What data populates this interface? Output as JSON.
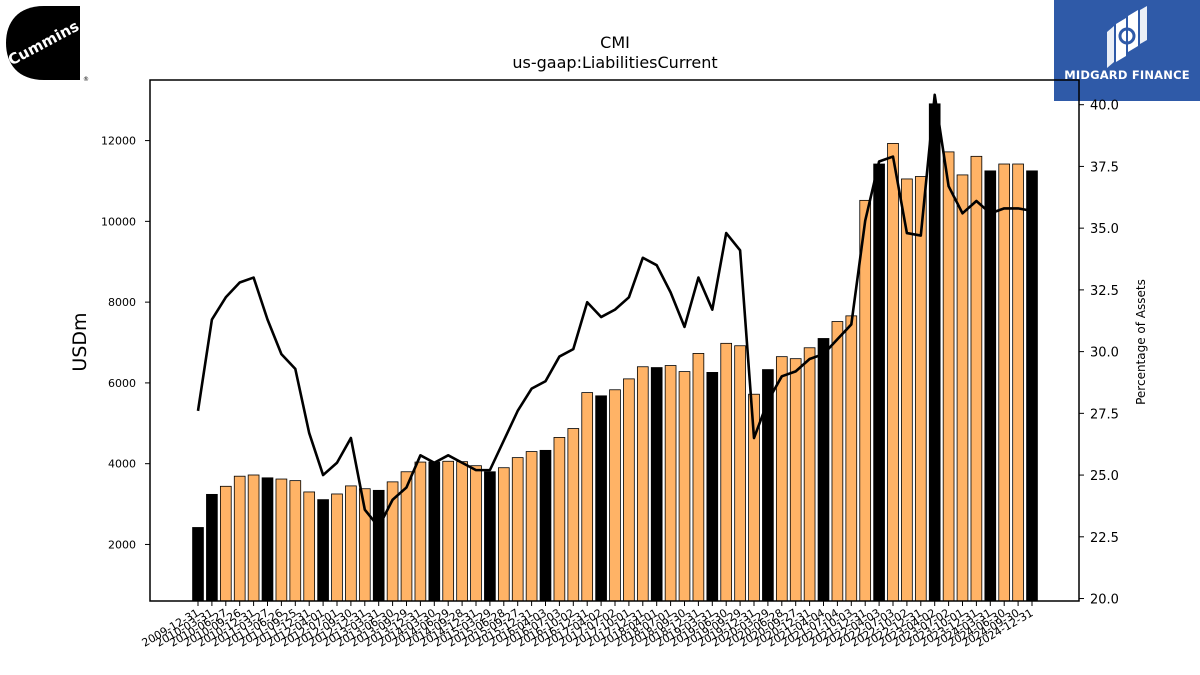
{
  "header": {
    "ticker": "CMI",
    "metric": "us-gaap:LiabilitiesCurrent"
  },
  "logos": {
    "left_text": "Cummins",
    "right_text": "MIDGARD FINANCE"
  },
  "colors": {
    "bar_quarterly": "#ffb366",
    "bar_annual": "#000000",
    "line": "#000000",
    "brand_blue": "#2f5aa8"
  },
  "chart_data": {
    "type": "bar",
    "title": "CMI",
    "subtitle": "us-gaap:LiabilitiesCurrent",
    "ylabel": "USDm",
    "y2label": "Percentage of Assets",
    "ylim": [
      600,
      13500
    ],
    "y2lim": [
      19.9,
      41.0
    ],
    "yticks": [
      2000,
      4000,
      6000,
      8000,
      10000,
      12000
    ],
    "y2ticks": [
      "20.0",
      "22.5",
      "25.0",
      "27.5",
      "30.0",
      "32.5",
      "35.0",
      "37.5",
      "40.0"
    ],
    "categories": [
      "2009-12-31",
      "2010-03-31",
      "2010-06-27",
      "2010-09-26",
      "2010-12-31",
      "2011-03-27",
      "2011-06-26",
      "2011-09-25",
      "2011-12-31",
      "2012-04-01",
      "2012-07-01",
      "2012-09-30",
      "2012-12-31",
      "2013-03-31",
      "2013-06-30",
      "2013-09-29",
      "2013-12-31",
      "2014-03-30",
      "2014-06-29",
      "2014-09-28",
      "2014-12-31",
      "2015-03-29",
      "2015-06-28",
      "2015-09-27",
      "2015-12-31",
      "2016-04-03",
      "2016-07-03",
      "2016-10-02",
      "2016-12-31",
      "2017-04-02",
      "2017-07-02",
      "2017-10-01",
      "2017-12-31",
      "2018-04-01",
      "2018-07-01",
      "2018-09-30",
      "2018-12-31",
      "2019-03-31",
      "2019-06-30",
      "2019-09-29",
      "2019-12-31",
      "2020-03-29",
      "2020-06-28",
      "2020-09-27",
      "2020-12-31",
      "2021-04-04",
      "2021-07-04",
      "2021-10-03",
      "2021-12-31",
      "2022-04-03",
      "2022-07-03",
      "2022-10-02",
      "2022-12-31",
      "2023-04-02",
      "2023-07-02",
      "2023-10-01",
      "2023-12-31",
      "2024-03-31",
      "2024-06-30",
      "2024-09-30",
      "2024-12-31"
    ],
    "x_tick_labels": [
      "2009-12-31",
      "2010-03-31",
      "2010-06-27",
      "2010-09-26",
      "2010-12-31",
      "2011-03-27",
      "2011-06-26",
      "2011-09-25",
      "2011-12-31",
      "2012-04-01",
      "2012-07-01",
      "2012-09-30",
      "2012-12-31",
      "2013-03-31",
      "2013-06-30",
      "2013-09-29",
      "2013-12-31",
      "2014-03-30",
      "2014-06-29",
      "2014-09-28",
      "2014-12-31",
      "2015-03-29",
      "2015-06-28",
      "2015-09-27",
      "2015-12-31",
      "2016-04-03",
      "2016-07-03",
      "2016-10-02",
      "2016-12-31",
      "2017-04-02",
      "2017-07-02",
      "2017-10-01",
      "2017-12-31",
      "2018-04-01",
      "2018-07-01",
      "2018-09-30",
      "2018-12-31",
      "2019-03-31",
      "2019-06-30",
      "2019-09-29",
      "2019-12-31",
      "2020-03-29",
      "2020-06-28",
      "2020-09-27",
      "2020-12-31",
      "2021-04-04",
      "2021-07-04",
      "2021-10-03",
      "2021-12-31",
      "2022-04-03",
      "2022-07-03",
      "2022-10-02",
      "2022-12-31",
      "2023-04-02",
      "2023-07-02",
      "2023-10-01",
      "2023-12-31",
      "2024-03-31",
      "2024-06-30",
      "2024-09-30",
      "2024-12-31"
    ],
    "annual_flags": [
      1,
      1,
      0,
      0,
      0,
      1,
      0,
      0,
      0,
      1,
      0,
      0,
      0,
      1,
      0,
      0,
      0,
      1,
      0,
      0,
      0,
      1,
      0,
      0,
      0,
      1,
      0,
      0,
      0,
      1,
      0,
      0,
      0,
      1,
      0,
      0,
      0,
      1,
      0,
      0,
      0,
      1,
      0,
      0,
      0,
      1,
      0,
      0,
      0,
      1,
      0,
      0,
      0,
      1,
      0,
      0,
      0,
      1,
      0,
      0,
      1
    ],
    "series": [
      {
        "values": [
          2420,
          3240,
          3440,
          3690,
          3720,
          3650,
          3620,
          3580,
          3300,
          3110,
          3250,
          3450,
          3380,
          3340,
          3550,
          3800,
          4040,
          4040,
          4060,
          4050,
          3950,
          3800,
          3900,
          4150,
          4300,
          4330,
          4650,
          4870,
          5760,
          5680,
          5830,
          6100,
          6400,
          6380,
          6430,
          6280,
          6730,
          6260,
          6980,
          6920,
          5720,
          6330,
          6650,
          6600,
          6870,
          7100,
          7520,
          7660,
          10520,
          11420,
          11930,
          11050,
          11110,
          12910,
          11720,
          11150,
          11610,
          11250,
          11420,
          11420,
          11250
        ]
      },
      {
        "axis": "right",
        "values": [
          27.6,
          31.3,
          32.2,
          32.8,
          33.0,
          31.3,
          29.9,
          29.3,
          26.7,
          25.0,
          25.5,
          26.5,
          23.6,
          22.9,
          24.0,
          24.5,
          25.8,
          25.5,
          25.8,
          25.5,
          25.2,
          25.2,
          26.4,
          27.6,
          28.5,
          28.8,
          29.8,
          30.1,
          32.0,
          31.4,
          31.7,
          32.2,
          33.8,
          33.5,
          32.4,
          31.0,
          33.0,
          31.7,
          34.8,
          34.1,
          26.5,
          28.0,
          29.0,
          29.2,
          29.7,
          29.9,
          30.5,
          31.1,
          35.3,
          37.7,
          37.9,
          34.8,
          34.7,
          40.4,
          36.7,
          35.6,
          36.1,
          35.6,
          35.8,
          35.8,
          35.7
        ]
      }
    ],
    "grid": false,
    "legend": "none"
  }
}
